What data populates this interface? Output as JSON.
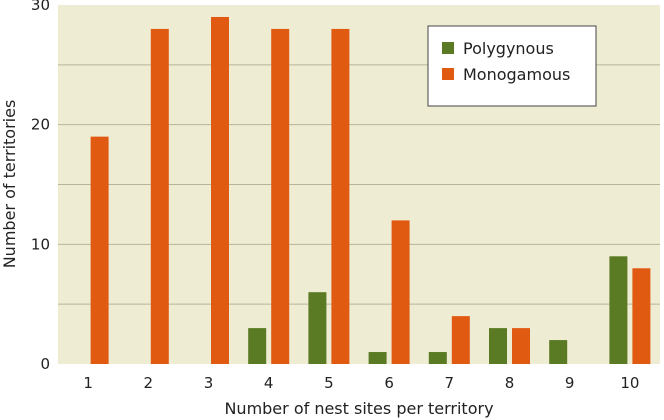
{
  "chart_data": {
    "type": "bar",
    "categories": [
      "1",
      "2",
      "3",
      "4",
      "5",
      "6",
      "7",
      "8",
      "9",
      "10"
    ],
    "series": [
      {
        "name": "Polygynous",
        "color": "#5a7a23",
        "values": [
          0,
          0,
          0,
          3,
          6,
          1,
          1,
          3,
          2,
          9
        ]
      },
      {
        "name": "Monogamous",
        "color": "#e05a12",
        "values": [
          19,
          28,
          29,
          28,
          28,
          12,
          4,
          3,
          0,
          8
        ]
      }
    ],
    "xlabel": "Number of nest sites per territory",
    "ylabel": "Number of territories",
    "ylim": [
      0,
      30
    ],
    "yticks": [
      0,
      10,
      20,
      30
    ],
    "grid": true,
    "legend_position": "top-right",
    "plot_background": "#efecd4",
    "grid_color": "#b8b49a"
  }
}
